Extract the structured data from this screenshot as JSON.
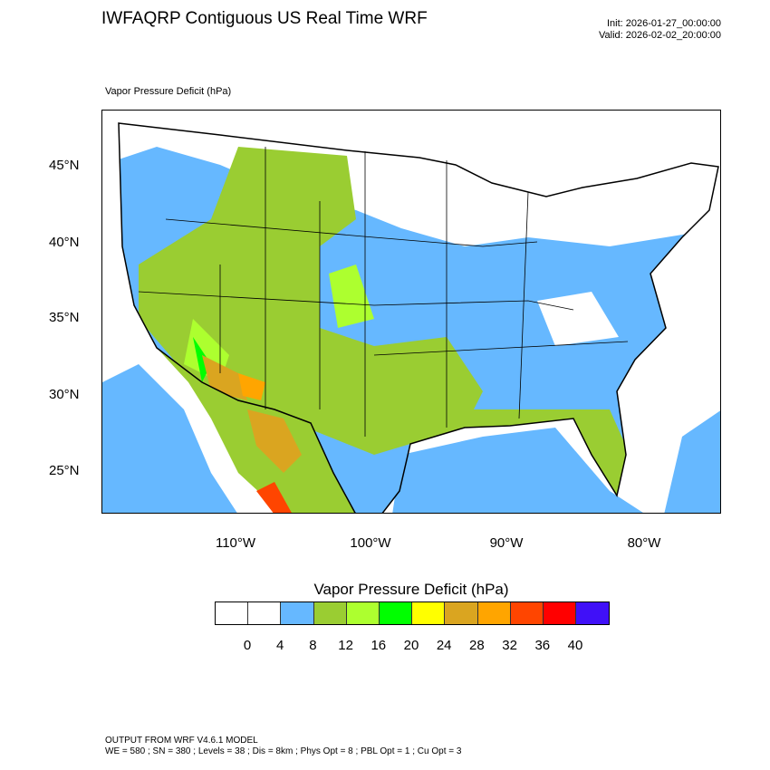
{
  "header": {
    "title": "IWFAQRP Contiguous US Real Time WRF",
    "init": "Init: 2026-01-27_00:00:00",
    "valid": "Valid: 2026-02-02_20:00:00"
  },
  "field_label": "Vapor Pressure Deficit   (hPa)",
  "lat_labels": [
    "45°N",
    "40°N",
    "35°N",
    "30°N",
    "25°N"
  ],
  "lon_labels": [
    "110°W",
    "100°W",
    "90°W",
    "80°W"
  ],
  "colorbar": {
    "title": "Vapor Pressure Deficit  (hPa)",
    "colors": [
      "#ffffff",
      "#ffffff",
      "#66b8ff",
      "#9acd32",
      "#adff2f",
      "#00ff00",
      "#ffff00",
      "#daa520",
      "#ffa500",
      "#ff4500",
      "#ff0000",
      "#4010f8"
    ],
    "labels": [
      "0",
      "4",
      "8",
      "12",
      "16",
      "20",
      "24",
      "28",
      "32",
      "36",
      "40"
    ]
  },
  "footer": {
    "line1": "OUTPUT FROM WRF V4.6.1 MODEL",
    "line2": "WE = 580 ; SN = 380 ; Levels = 38 ; Dis = 8km ; Phys Opt = 8 ; PBL Opt = 1 ; Cu Opt = 3"
  }
}
